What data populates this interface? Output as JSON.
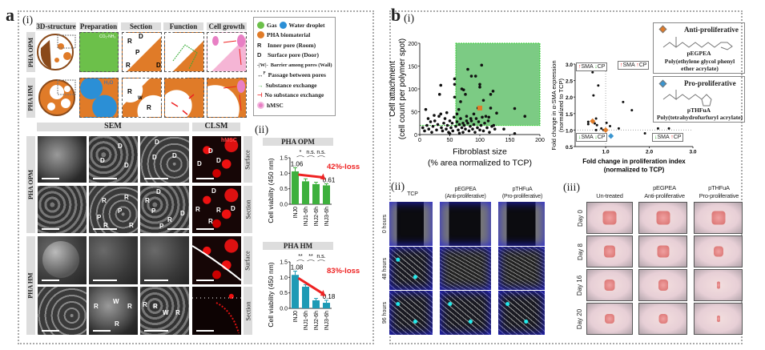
{
  "panel_a": {
    "label": "a",
    "sub_i": "(i)",
    "sub_ii": "(ii)",
    "schematic": {
      "columns": [
        "3D-structure",
        "Preparation",
        "Section",
        "Function",
        "Cell growth"
      ],
      "rows": [
        "PHA OPM",
        "PHA HM"
      ],
      "labels": {
        "co2": "CO₂-NH₃",
        "h2o": "H₂O",
        "r": "R",
        "d": "D",
        "p": "P",
        "w": "W"
      }
    },
    "legend": [
      {
        "label": "Gas",
        "color": "#6cc04a"
      },
      {
        "label": "Water droplet",
        "color": "#2b8fd6"
      },
      {
        "label": "PHA biomaterial",
        "color": "#e07b28"
      },
      {
        "symbol": "R",
        "label": "Inner pore (Room)"
      },
      {
        "symbol": "D",
        "label": "Surface pore (Door)"
      },
      {
        "symbol": "-|W|-",
        "label": "Barrier among pores (Wall)"
      },
      {
        "symbol": "P",
        "label": "Passage between pores"
      },
      {
        "symbol": "green-arrow",
        "label": "Substance exchange"
      },
      {
        "symbol": "red-blocker",
        "label": "No substance exchange"
      },
      {
        "label": "hMSC",
        "color": "#e87fc4"
      }
    ],
    "micrographs": {
      "headers": [
        "SEM",
        "CLSM"
      ],
      "groups": [
        "PHA OPM",
        "PHA HM"
      ],
      "side_labels": [
        "Surface",
        "Section",
        "Surface",
        "Section"
      ],
      "clsm_tag": "hMSC",
      "marks": {
        "d": "D",
        "r": "R",
        "p": "P",
        "w": "W"
      }
    }
  },
  "panel_b": {
    "label": "b",
    "sub_i": "(i)",
    "sub_ii": "(ii)",
    "sub_iii": "(iii)",
    "quadrants": [
      {
        "sma": "up",
        "cp": "down",
        "text_sma": "SMA",
        "text_cp": "CP"
      },
      {
        "sma": "up",
        "cp": "up",
        "text_sma": "SMA",
        "text_cp": "CP"
      },
      {
        "sma": "down",
        "cp": "down",
        "text_sma": "SMA",
        "text_cp": "CP"
      },
      {
        "sma": "down",
        "cp": "up",
        "text_sma": "SMA",
        "text_cp": "CP"
      }
    ],
    "structures": [
      {
        "class": "Anti-proliferative",
        "abbr": "pEGPEA",
        "name": "Poly(ethylene glycol phenyl ether acrylate)",
        "color": "#e07b28"
      },
      {
        "class": "Pro-proliferative",
        "abbr": "pTHFuA",
        "name": "Poly(tetrahydrofurfuryl acrylate)",
        "color": "#3a95d0"
      }
    ],
    "migration": {
      "columns": [
        "TCP",
        "pEGPEA\n(Anti-proliferative)",
        "pTHFuA\n(Pro-proliferative)"
      ],
      "column_lines": [
        [
          "TCP"
        ],
        [
          "pEGPEA",
          "(Anti-proliferative)"
        ],
        [
          "pTHFuA",
          "(Pro-proliferative)"
        ]
      ],
      "rows": [
        "0 hours",
        "48 hours",
        "96 hours"
      ]
    },
    "wound": {
      "column_lines": [
        [
          "Un-treated"
        ],
        [
          "pEGPEA",
          "Anti-proliferative"
        ],
        [
          "pTHFuA",
          "Pro-proliferative"
        ]
      ],
      "rows": [
        "Day 0",
        "Day 8",
        "Day 16",
        "Day 20"
      ]
    }
  },
  "chart_data": [
    {
      "id": "opm-viability",
      "type": "bar",
      "title": "PHA OPM",
      "ylabel": "Cell viability (450 nm)",
      "categories": [
        "INJ0",
        "INJ1-6h",
        "INJ2-6h",
        "INJ3-6h"
      ],
      "values": [
        1.06,
        0.74,
        0.65,
        0.61
      ],
      "errors": [
        0.12,
        0.08,
        0.06,
        0.05
      ],
      "value_labels": [
        "1.06",
        "",
        "",
        "0.61"
      ],
      "significance": [
        "*",
        "n.s.",
        "n.s."
      ],
      "annotation": "42%-loss",
      "ylim": [
        0,
        1.5
      ],
      "yticks": [
        "0.0",
        "0.5",
        "1.0",
        "1.5"
      ],
      "color": "#3db03d"
    },
    {
      "id": "hm-viability",
      "type": "bar",
      "title": "PHA HM",
      "ylabel": "Cell viability (450 nm)",
      "categories": [
        "INJ0",
        "INJ1-6h",
        "INJ2-6h",
        "INJ3-6h"
      ],
      "values": [
        1.08,
        0.7,
        0.26,
        0.18
      ],
      "errors": [
        0.12,
        0.06,
        0.06,
        0.08
      ],
      "value_labels": [
        "1.08",
        "",
        "",
        "0.18"
      ],
      "significance": [
        "**",
        "**",
        "n.s."
      ],
      "annotation": "83%-loss",
      "ylim": [
        0,
        1.5
      ],
      "yticks": [
        "0.0",
        "0.5",
        "1.0",
        "1.5"
      ],
      "color": "#1e9ab5"
    },
    {
      "id": "attachment-scatter",
      "type": "scatter",
      "xlabel": [
        "Fibroblast size",
        "(% area normalized to TCP)"
      ],
      "ylabel": [
        "Cell attachment",
        "(cell count per polymer spot)"
      ],
      "xlim": [
        0,
        200
      ],
      "ylim": [
        0,
        200
      ],
      "xticks": [
        0,
        50,
        100,
        150,
        200
      ],
      "yticks": [
        0,
        50,
        100,
        150,
        200
      ],
      "highlight_region": {
        "x": [
          60,
          200
        ],
        "y": [
          20,
          200
        ],
        "color": "#7ccb84"
      },
      "points": [
        [
          10,
          55
        ],
        [
          35,
          108
        ],
        [
          33,
          88
        ],
        [
          58,
          122
        ],
        [
          58,
          110
        ],
        [
          58,
          82
        ],
        [
          68,
          72
        ],
        [
          70,
          100
        ],
        [
          73,
          98
        ],
        [
          76,
          88
        ],
        [
          80,
          143
        ],
        [
          86,
          128
        ],
        [
          93,
          128
        ],
        [
          100,
          110
        ],
        [
          100,
          104
        ],
        [
          103,
          152
        ],
        [
          106,
          75
        ],
        [
          118,
          88
        ],
        [
          122,
          95
        ],
        [
          97,
          58
        ],
        [
          65,
          55
        ],
        [
          62,
          45
        ],
        [
          118,
          58
        ],
        [
          128,
          47
        ],
        [
          140,
          12
        ],
        [
          158,
          57
        ],
        [
          158,
          2
        ],
        [
          175,
          40
        ],
        [
          123,
          20
        ],
        [
          110,
          40
        ],
        [
          115,
          38
        ],
        [
          90,
          45
        ],
        [
          85,
          35
        ],
        [
          78,
          30
        ],
        [
          72,
          25
        ],
        [
          5,
          15
        ],
        [
          8,
          8
        ],
        [
          12,
          20
        ],
        [
          15,
          12
        ],
        [
          18,
          28
        ],
        [
          20,
          5
        ],
        [
          22,
          18
        ],
        [
          25,
          30
        ],
        [
          28,
          10
        ],
        [
          30,
          22
        ],
        [
          32,
          40
        ],
        [
          35,
          45
        ],
        [
          36,
          15
        ],
        [
          38,
          8
        ],
        [
          40,
          25
        ],
        [
          42,
          35
        ],
        [
          44,
          12
        ],
        [
          46,
          20
        ],
        [
          48,
          5
        ],
        [
          50,
          30
        ],
        [
          52,
          15
        ],
        [
          54,
          25
        ],
        [
          55,
          8
        ],
        [
          57,
          38
        ],
        [
          60,
          18
        ],
        [
          62,
          28
        ],
        [
          64,
          10
        ],
        [
          66,
          22
        ],
        [
          68,
          35
        ],
        [
          70,
          15
        ],
        [
          72,
          5
        ],
        [
          74,
          20
        ],
        [
          76,
          12
        ],
        [
          78,
          40
        ],
        [
          80,
          25
        ],
        [
          82,
          8
        ],
        [
          84,
          18
        ],
        [
          86,
          30
        ],
        [
          88,
          12
        ],
        [
          90,
          22
        ],
        [
          92,
          5
        ],
        [
          94,
          35
        ],
        [
          96,
          15
        ],
        [
          98,
          28
        ],
        [
          100,
          10
        ],
        [
          102,
          20
        ],
        [
          104,
          38
        ],
        [
          106,
          8
        ],
        [
          108,
          25
        ],
        [
          112,
          15
        ],
        [
          114,
          30
        ],
        [
          116,
          5
        ],
        [
          120,
          18
        ],
        [
          125,
          12
        ],
        [
          24,
          42
        ],
        [
          14,
          35
        ],
        [
          45,
          48
        ],
        [
          50,
          2
        ],
        [
          66,
          3
        ]
      ],
      "highlight_points": [
        {
          "x": 100,
          "y": 58,
          "color": "#e07b28"
        }
      ]
    },
    {
      "id": "fold-change-scatter",
      "type": "scatter",
      "xlabel": [
        "Fold change in proliferation index",
        "(normalized to TCP)"
      ],
      "ylabel": [
        "Fold change in α-SMA expression",
        "(normalized to TCP)"
      ],
      "xlim": [
        0.3,
        3.0
      ],
      "ylim": [
        0.5,
        3.0
      ],
      "xticks": [
        "1.0",
        "2.0",
        "3.0"
      ],
      "yticks": [
        "0.5",
        "1.0",
        "1.5",
        "2.0",
        "2.5",
        "3.0"
      ],
      "reference_lines": {
        "x": 1.0,
        "y": 1.0
      },
      "points": [
        [
          0.6,
          1.25
        ],
        [
          0.6,
          1.18
        ],
        [
          0.7,
          2.75
        ],
        [
          0.72,
          2.05
        ],
        [
          0.83,
          2.35
        ],
        [
          0.75,
          1.2
        ],
        [
          0.78,
          1.35
        ],
        [
          0.8,
          1.15
        ],
        [
          0.78,
          1.0
        ],
        [
          0.9,
          1.05
        ],
        [
          0.95,
          1.0
        ],
        [
          1.02,
          1.22
        ],
        [
          1.1,
          1.12
        ],
        [
          1.3,
          1.05
        ],
        [
          1.4,
          1.85
        ],
        [
          1.6,
          1.6
        ],
        [
          1.9,
          0.9
        ],
        [
          2.2,
          1.05
        ],
        [
          2.45,
          1.05
        ],
        [
          0.8,
          0.78
        ]
      ],
      "highlight_points": [
        {
          "x": 0.7,
          "y": 1.27,
          "color": "#e07b28"
        },
        {
          "x": 1.0,
          "y": 1.0,
          "color": "#e07b28"
        },
        {
          "x": 1.12,
          "y": 0.82,
          "color": "#3a95d0"
        }
      ]
    }
  ]
}
